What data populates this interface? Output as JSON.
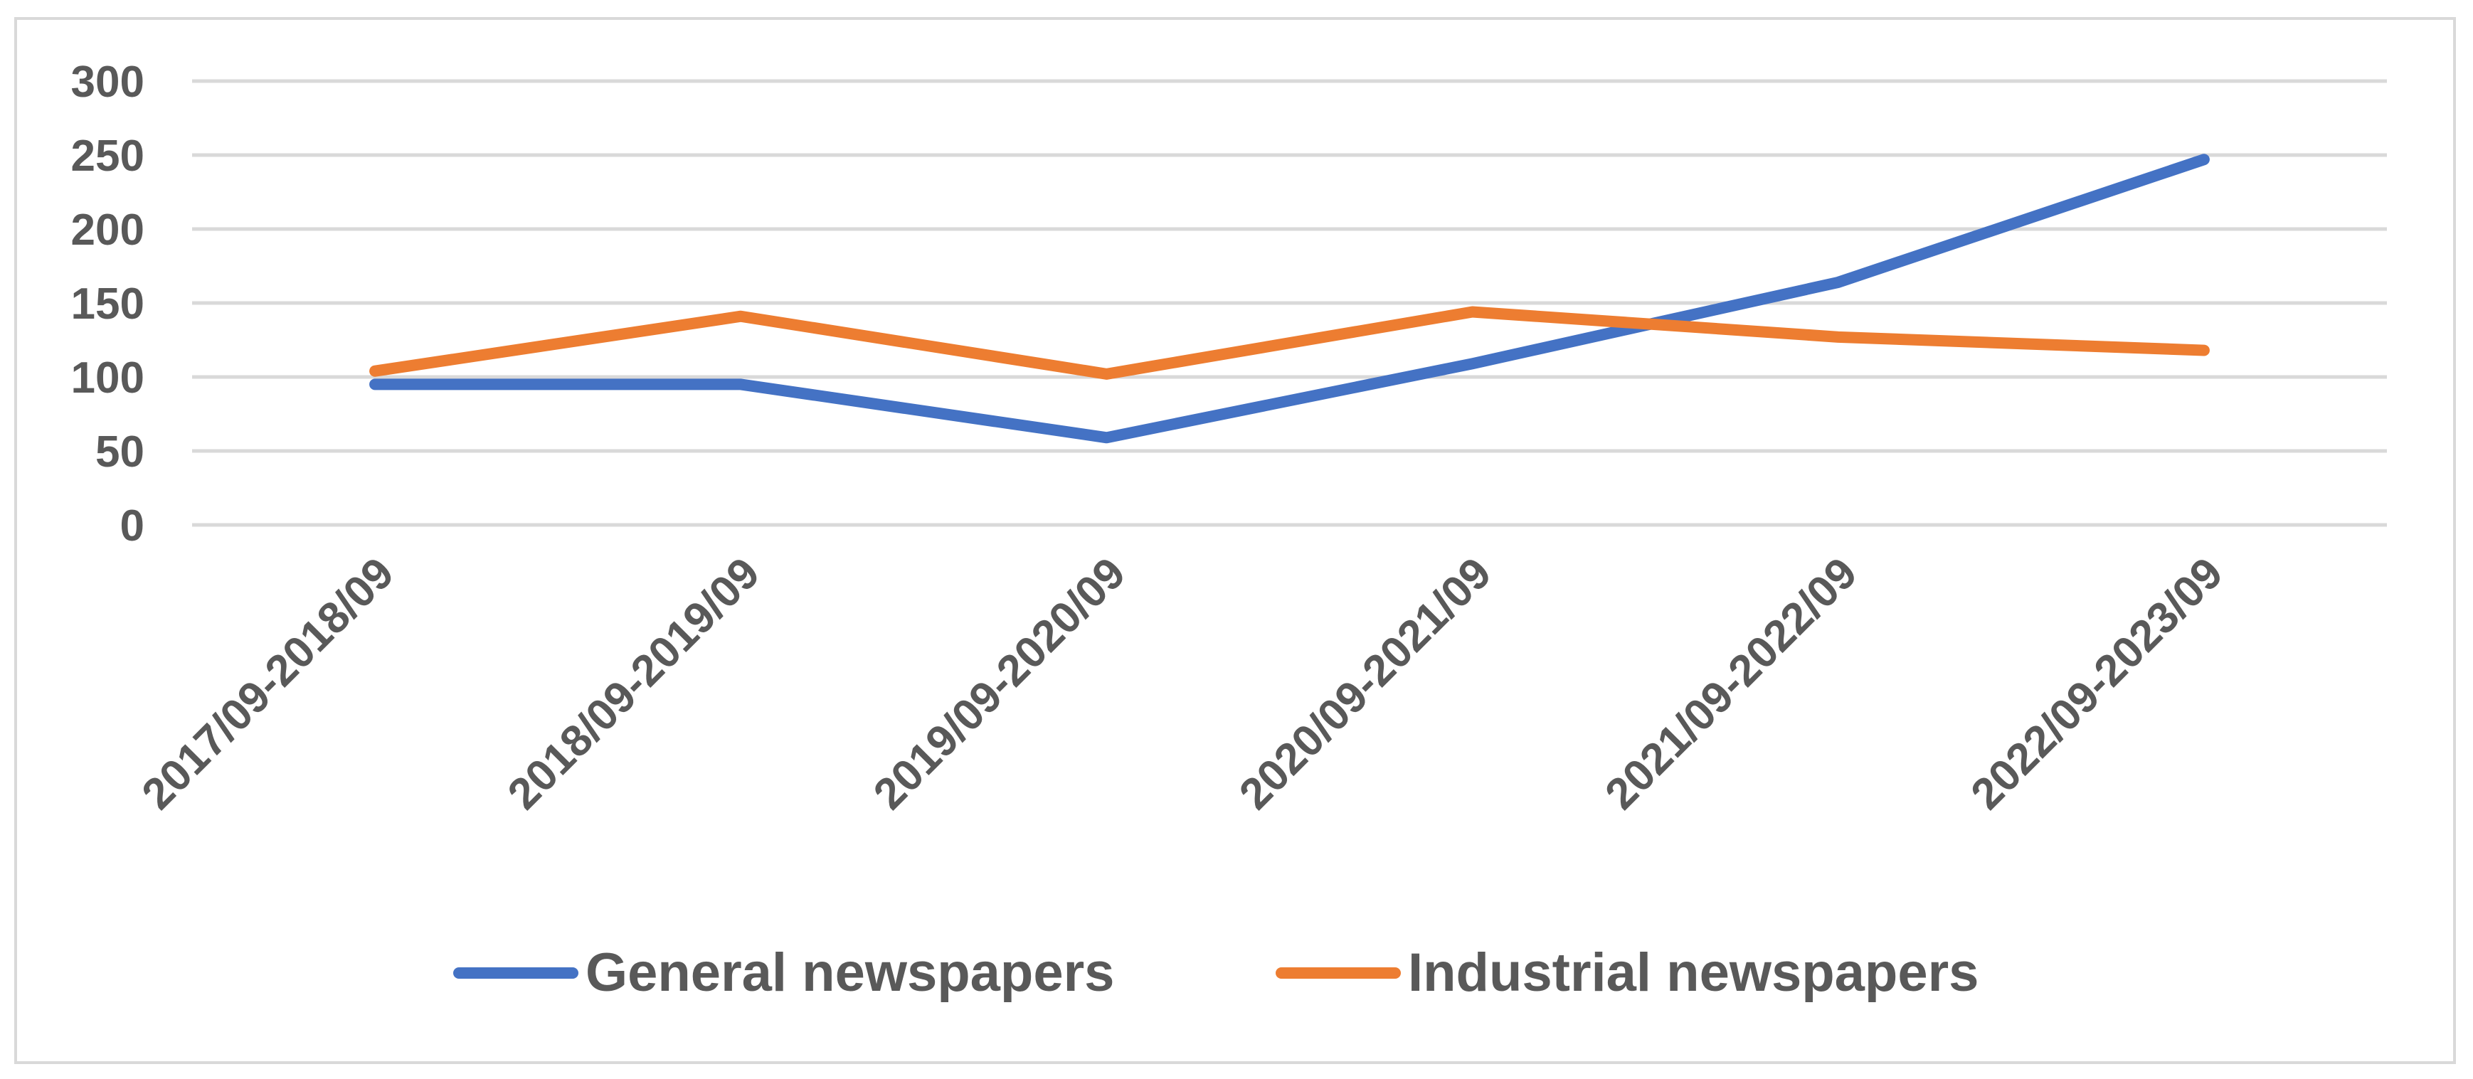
{
  "chart_data": {
    "type": "line",
    "title": "",
    "xlabel": "",
    "ylabel": "",
    "categories": [
      "2017/09-2018/09",
      "2018/09-2019/09",
      "2019/09-2020/09",
      "2020/09-2021/09",
      "2021/09-2022/09",
      "2022/09-2023/09"
    ],
    "ylim": [
      0,
      300
    ],
    "yticks": [
      "0",
      "50",
      "100",
      "150",
      "200",
      "250",
      "300"
    ],
    "grid": true,
    "legend_position": "bottom",
    "series": [
      {
        "name": "General newspapers",
        "color": "#4472c4",
        "values": [
          95,
          95,
          59,
          109,
          164,
          247
        ]
      },
      {
        "name": "Industrial newspapers",
        "color": "#ed7d31",
        "values": [
          104,
          141,
          102,
          144,
          127,
          118
        ]
      }
    ]
  }
}
